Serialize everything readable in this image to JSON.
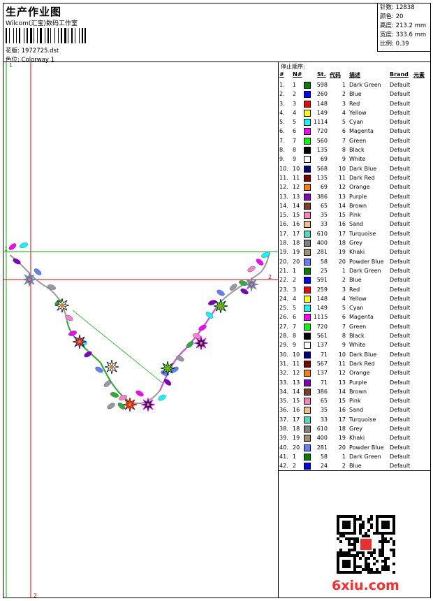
{
  "header": {
    "title": "生产作业图",
    "company": "Wilcom(汇宝)数码工作室",
    "design_label": "花版:",
    "design_value": "1972725.dst",
    "colorway_label": "色位:",
    "colorway_value": "Colorway 1"
  },
  "stats": {
    "stitches": "针数: 12838",
    "colors": "颜色: 20",
    "height": "高度: 213.2 mm",
    "width": "宽度: 333.6 mm",
    "scale": "比例: 0.39"
  },
  "design_markers": {
    "top_left": "1",
    "left_mid": "1",
    "right_mid": "2",
    "bottom": "2"
  },
  "stop_sequence": {
    "title": "停止顺序:",
    "headers": [
      "#",
      "N#",
      "St.",
      "代码",
      "描述",
      "Brand",
      "元素"
    ],
    "rows": [
      {
        "no": "1.",
        "n": "1",
        "color": "#008000",
        "st": "598",
        "code": "1",
        "desc": "Dark Green",
        "brand": "Default"
      },
      {
        "no": "2.",
        "n": "2",
        "color": "#0000ff",
        "st": "260",
        "code": "2",
        "desc": "Blue",
        "brand": "Default"
      },
      {
        "no": "3.",
        "n": "3",
        "color": "#ff0000",
        "st": "148",
        "code": "3",
        "desc": "Red",
        "brand": "Default"
      },
      {
        "no": "4.",
        "n": "4",
        "color": "#ffff00",
        "st": "149",
        "code": "4",
        "desc": "Yellow",
        "brand": "Default"
      },
      {
        "no": "5.",
        "n": "5",
        "color": "#00ffff",
        "st": "1114",
        "code": "5",
        "desc": "Cyan",
        "brand": "Default"
      },
      {
        "no": "6.",
        "n": "6",
        "color": "#ff00ff",
        "st": "720",
        "code": "6",
        "desc": "Magenta",
        "brand": "Default"
      },
      {
        "no": "7.",
        "n": "7",
        "color": "#00ff00",
        "st": "560",
        "code": "7",
        "desc": "Green",
        "brand": "Default"
      },
      {
        "no": "8.",
        "n": "8",
        "color": "#000000",
        "st": "135",
        "code": "8",
        "desc": "Black",
        "brand": "Default"
      },
      {
        "no": "9.",
        "n": "9",
        "color": "#ffffff",
        "st": "69",
        "code": "9",
        "desc": "White",
        "brand": "Default"
      },
      {
        "no": "10.",
        "n": "10",
        "color": "#000080",
        "st": "568",
        "code": "10",
        "desc": "Dark Blue",
        "brand": "Default"
      },
      {
        "no": "11.",
        "n": "11",
        "color": "#800000",
        "st": "135",
        "code": "11",
        "desc": "Dark Red",
        "brand": "Default"
      },
      {
        "no": "12.",
        "n": "12",
        "color": "#ff8000",
        "st": "69",
        "code": "12",
        "desc": "Orange",
        "brand": "Default"
      },
      {
        "no": "13.",
        "n": "13",
        "color": "#8000c0",
        "st": "386",
        "code": "13",
        "desc": "Purple",
        "brand": "Default"
      },
      {
        "no": "14.",
        "n": "14",
        "color": "#804020",
        "st": "65",
        "code": "14",
        "desc": "Brown",
        "brand": "Default"
      },
      {
        "no": "15.",
        "n": "15",
        "color": "#ff80c0",
        "st": "35",
        "code": "15",
        "desc": "Pink",
        "brand": "Default"
      },
      {
        "no": "16.",
        "n": "16",
        "color": "#f0c080",
        "st": "33",
        "code": "16",
        "desc": "Sand",
        "brand": "Default"
      },
      {
        "no": "17.",
        "n": "17",
        "color": "#40e0c0",
        "st": "610",
        "code": "17",
        "desc": "Turquoise",
        "brand": "Default"
      },
      {
        "no": "18.",
        "n": "18",
        "color": "#808080",
        "st": "400",
        "code": "18",
        "desc": "Grey",
        "brand": "Default"
      },
      {
        "no": "19.",
        "n": "19",
        "color": "#a09070",
        "st": "281",
        "code": "19",
        "desc": "Khaki",
        "brand": "Default"
      },
      {
        "no": "20.",
        "n": "20",
        "color": "#6080ff",
        "st": "58",
        "code": "20",
        "desc": "Powder Blue",
        "brand": "Default"
      },
      {
        "no": "21.",
        "n": "1",
        "color": "#008000",
        "st": "25",
        "code": "1",
        "desc": "Dark Green",
        "brand": "Default"
      },
      {
        "no": "22.",
        "n": "2",
        "color": "#0000ff",
        "st": "591",
        "code": "2",
        "desc": "Blue",
        "brand": "Default"
      },
      {
        "no": "23.",
        "n": "3",
        "color": "#ff0000",
        "st": "259",
        "code": "3",
        "desc": "Red",
        "brand": "Default"
      },
      {
        "no": "24.",
        "n": "4",
        "color": "#ffff00",
        "st": "148",
        "code": "4",
        "desc": "Yellow",
        "brand": "Default"
      },
      {
        "no": "25.",
        "n": "5",
        "color": "#00ffff",
        "st": "149",
        "code": "5",
        "desc": "Cyan",
        "brand": "Default"
      },
      {
        "no": "26.",
        "n": "6",
        "color": "#ff00ff",
        "st": "1115",
        "code": "6",
        "desc": "Magenta",
        "brand": "Default"
      },
      {
        "no": "27.",
        "n": "7",
        "color": "#00ff00",
        "st": "720",
        "code": "7",
        "desc": "Green",
        "brand": "Default"
      },
      {
        "no": "28.",
        "n": "8",
        "color": "#000000",
        "st": "561",
        "code": "8",
        "desc": "Black",
        "brand": "Default"
      },
      {
        "no": "29.",
        "n": "9",
        "color": "#ffffff",
        "st": "137",
        "code": "9",
        "desc": "White",
        "brand": "Default"
      },
      {
        "no": "30.",
        "n": "10",
        "color": "#000080",
        "st": "71",
        "code": "10",
        "desc": "Dark Blue",
        "brand": "Default"
      },
      {
        "no": "31.",
        "n": "11",
        "color": "#800000",
        "st": "567",
        "code": "11",
        "desc": "Dark Red",
        "brand": "Default"
      },
      {
        "no": "32.",
        "n": "12",
        "color": "#ff8000",
        "st": "137",
        "code": "12",
        "desc": "Orange",
        "brand": "Default"
      },
      {
        "no": "33.",
        "n": "13",
        "color": "#8000c0",
        "st": "71",
        "code": "13",
        "desc": "Purple",
        "brand": "Default"
      },
      {
        "no": "34.",
        "n": "14",
        "color": "#804020",
        "st": "386",
        "code": "14",
        "desc": "Brown",
        "brand": "Default"
      },
      {
        "no": "35.",
        "n": "15",
        "color": "#ff80c0",
        "st": "65",
        "code": "15",
        "desc": "Pink",
        "brand": "Default"
      },
      {
        "no": "36.",
        "n": "16",
        "color": "#f0c080",
        "st": "35",
        "code": "16",
        "desc": "Sand",
        "brand": "Default"
      },
      {
        "no": "37.",
        "n": "17",
        "color": "#40e0c0",
        "st": "33",
        "code": "17",
        "desc": "Turquoise",
        "brand": "Default"
      },
      {
        "no": "38.",
        "n": "18",
        "color": "#808080",
        "st": "610",
        "code": "18",
        "desc": "Grey",
        "brand": "Default"
      },
      {
        "no": "39.",
        "n": "19",
        "color": "#a09070",
        "st": "400",
        "code": "19",
        "desc": "Khaki",
        "brand": "Default"
      },
      {
        "no": "40.",
        "n": "20",
        "color": "#6080ff",
        "st": "281",
        "code": "20",
        "desc": "Powder Blue",
        "brand": "Default"
      },
      {
        "no": "41.",
        "n": "1",
        "color": "#008000",
        "st": "58",
        "code": "1",
        "desc": "Dark Green",
        "brand": "Default"
      },
      {
        "no": "42.",
        "n": "2",
        "color": "#0000ff",
        "st": "24",
        "code": "2",
        "desc": "Blue",
        "brand": "Default"
      }
    ]
  },
  "footer": {
    "brand_mark": "6xiu.com",
    "qr_icon": "qr-code-icon"
  }
}
